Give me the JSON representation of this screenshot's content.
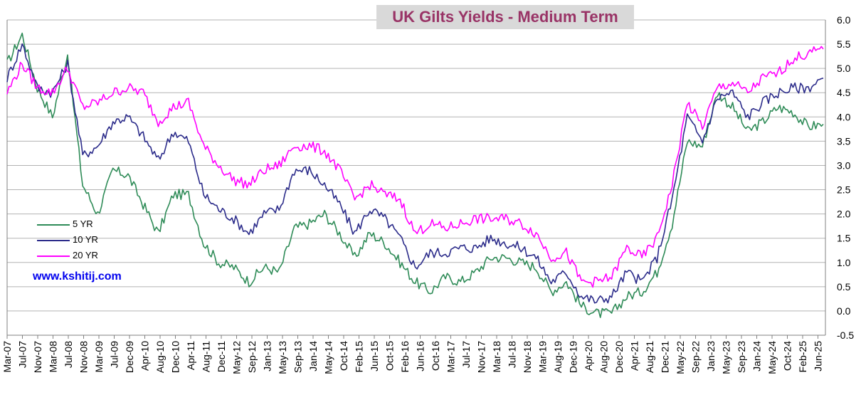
{
  "title": "UK Gilts Yields - Medium Term",
  "website": "www.kshitij.com",
  "chart_data": {
    "type": "line",
    "title": "UK Gilts Yields - Medium Term",
    "xlabel": "",
    "ylabel": "",
    "ylim": [
      -0.5,
      6.0
    ],
    "y_ticks": [
      "6.0",
      "5.5",
      "5.0",
      "4.5",
      "4.0",
      "3.5",
      "3.0",
      "2.5",
      "2.0",
      "1.5",
      "1.0",
      "0.5",
      "0.0",
      "-0.5"
    ],
    "x_ticks": [
      "Mar-07",
      "Jul-07",
      "Nov-07",
      "Mar-08",
      "Jul-08",
      "Nov-08",
      "Mar-09",
      "Jul-09",
      "Dec-09",
      "Apr-10",
      "Aug-10",
      "Dec-10",
      "Apr-11",
      "Aug-11",
      "Dec-11",
      "May-12",
      "Sep-12",
      "Jan-13",
      "May-13",
      "Sep-13",
      "Jan-14",
      "May-14",
      "Oct-14",
      "Feb-15",
      "Jun-15",
      "Oct-15",
      "Feb-16",
      "Jun-16",
      "Oct-16",
      "Mar-17",
      "Jul-17",
      "Nov-17",
      "Mar-18",
      "Jul-18",
      "Nov-18",
      "Mar-19",
      "Aug-19",
      "Dec-19",
      "Apr-20",
      "Aug-20",
      "Dec-20",
      "Apr-21",
      "Aug-21",
      "Dec-21",
      "May-22",
      "Sep-22",
      "Jan-23",
      "May-23",
      "Sep-23",
      "Jan-24",
      "May-24",
      "Oct-24",
      "Feb-25",
      "Jun-25"
    ],
    "x_range": [
      "Mar-07",
      "Aug-25"
    ],
    "grid": true,
    "legend_position": "left-middle",
    "colors": {
      "5 YR": "#2e8b57",
      "10 YR": "#2b2b8a",
      "20 YR": "#ff00ff"
    },
    "x": [
      "Mar-07",
      "Jul-07",
      "Nov-07",
      "Mar-08",
      "Jul-08",
      "Nov-08",
      "Mar-09",
      "Jul-09",
      "Dec-09",
      "Apr-10",
      "Aug-10",
      "Dec-10",
      "Apr-11",
      "Aug-11",
      "Dec-11",
      "May-12",
      "Sep-12",
      "Jan-13",
      "May-13",
      "Sep-13",
      "Jan-14",
      "May-14",
      "Oct-14",
      "Feb-15",
      "Jun-15",
      "Oct-15",
      "Feb-16",
      "Jun-16",
      "Oct-16",
      "Mar-17",
      "Jul-17",
      "Nov-17",
      "Mar-18",
      "Jul-18",
      "Nov-18",
      "Mar-19",
      "Aug-19",
      "Dec-19",
      "Apr-20",
      "Aug-20",
      "Dec-20",
      "Apr-21",
      "Aug-21",
      "Dec-21",
      "May-22",
      "Sep-22",
      "Jan-23",
      "May-23",
      "Sep-23",
      "Jan-24",
      "May-24",
      "Oct-24",
      "Feb-25",
      "Jun-25",
      "Aug-25"
    ],
    "series": [
      {
        "name": "5 YR",
        "values": [
          5.1,
          5.7,
          4.6,
          4.0,
          5.3,
          2.6,
          2.0,
          2.9,
          2.8,
          2.2,
          1.6,
          2.4,
          2.4,
          1.4,
          1.0,
          0.9,
          0.6,
          0.9,
          0.8,
          1.7,
          1.8,
          2.0,
          1.6,
          1.1,
          1.6,
          1.4,
          1.0,
          0.6,
          0.4,
          0.7,
          0.6,
          0.8,
          1.1,
          1.1,
          1.0,
          0.9,
          0.4,
          0.6,
          0.1,
          -0.05,
          -0.05,
          0.3,
          0.4,
          0.8,
          1.8,
          3.5,
          3.4,
          4.5,
          4.2,
          3.7,
          3.9,
          4.2,
          4.1,
          3.8,
          3.85
        ]
      },
      {
        "name": "10 YR",
        "values": [
          4.8,
          5.5,
          4.6,
          4.5,
          5.1,
          3.2,
          3.4,
          3.9,
          4.0,
          3.6,
          3.1,
          3.7,
          3.5,
          2.4,
          2.1,
          1.9,
          1.6,
          2.0,
          2.1,
          2.9,
          2.9,
          2.6,
          2.2,
          1.6,
          2.1,
          1.9,
          1.5,
          0.9,
          1.2,
          1.2,
          1.3,
          1.3,
          1.5,
          1.4,
          1.3,
          1.1,
          0.6,
          0.8,
          0.3,
          0.2,
          0.3,
          0.8,
          0.6,
          1.1,
          2.3,
          4.0,
          3.5,
          4.4,
          4.5,
          4.0,
          4.3,
          4.5,
          4.6,
          4.6,
          4.8
        ]
      },
      {
        "name": "20 YR",
        "values": [
          4.5,
          5.1,
          4.6,
          4.5,
          5.0,
          4.2,
          4.3,
          4.5,
          4.6,
          4.5,
          3.9,
          4.2,
          4.3,
          3.4,
          3.0,
          2.7,
          2.6,
          2.9,
          3.0,
          3.4,
          3.4,
          3.3,
          2.9,
          2.3,
          2.6,
          2.4,
          2.3,
          1.6,
          1.8,
          1.7,
          1.8,
          1.9,
          1.9,
          1.9,
          1.8,
          1.6,
          1.1,
          1.2,
          0.6,
          0.6,
          0.7,
          1.3,
          1.1,
          1.5,
          2.6,
          4.3,
          3.8,
          4.6,
          4.7,
          4.5,
          4.8,
          4.9,
          5.2,
          5.3,
          5.4
        ]
      }
    ]
  }
}
